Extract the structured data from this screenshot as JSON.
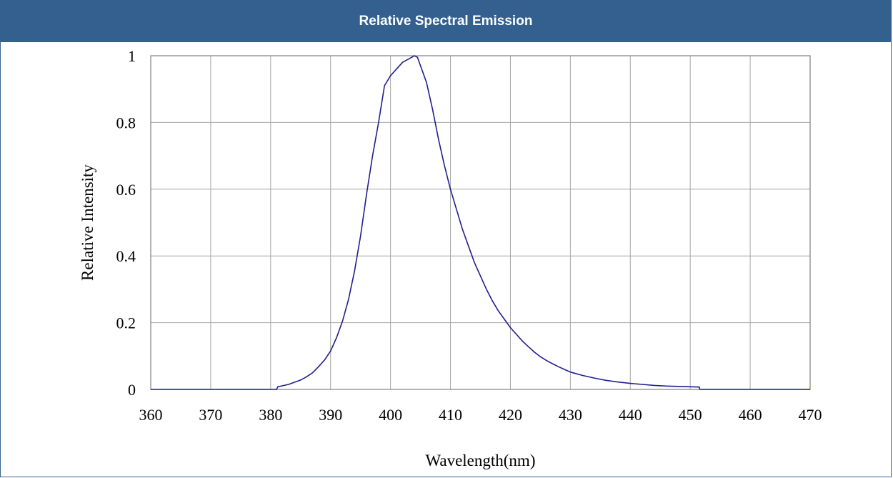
{
  "header": {
    "title": "Relative Spectral Emission"
  },
  "chart_data": {
    "type": "line",
    "title": "Relative Spectral Emission",
    "xlabel": "Wavelength(nm)",
    "ylabel": "Relative Intensity",
    "xlim": [
      360,
      470
    ],
    "ylim": [
      0,
      1
    ],
    "xticks": [
      "360",
      "370",
      "380",
      "390",
      "400",
      "410",
      "420",
      "430",
      "440",
      "450",
      "460",
      "470"
    ],
    "yticks": [
      "0",
      "0.2",
      "0.4",
      "0.6",
      "0.8",
      "1"
    ],
    "grid": true,
    "line_color": "#1f1f8f",
    "series": [
      {
        "x": [
          360,
          381,
          381.2,
          383,
          385,
          386,
          387,
          388,
          389,
          390,
          391,
          392,
          393,
          394,
          395,
          396,
          397,
          398,
          399,
          400,
          401,
          402,
          403,
          404,
          404.5,
          405,
          406,
          407,
          408,
          409,
          410,
          411,
          412,
          413,
          414,
          415,
          416,
          417,
          418,
          419,
          420,
          421,
          422,
          423,
          424,
          425,
          426,
          427,
          428,
          429,
          430,
          432,
          434,
          436,
          438,
          440,
          442,
          444,
          446,
          448,
          450,
          451.5,
          451.6,
          470
        ],
        "y": [
          0,
          0,
          0.008,
          0.015,
          0.028,
          0.038,
          0.05,
          0.068,
          0.088,
          0.115,
          0.155,
          0.205,
          0.27,
          0.355,
          0.46,
          0.585,
          0.7,
          0.8,
          0.91,
          0.94,
          0.96,
          0.98,
          0.99,
          1.0,
          0.995,
          0.97,
          0.92,
          0.84,
          0.75,
          0.67,
          0.6,
          0.54,
          0.48,
          0.43,
          0.38,
          0.34,
          0.3,
          0.265,
          0.235,
          0.21,
          0.185,
          0.165,
          0.145,
          0.128,
          0.112,
          0.098,
          0.087,
          0.077,
          0.068,
          0.06,
          0.052,
          0.042,
          0.034,
          0.027,
          0.022,
          0.018,
          0.015,
          0.012,
          0.01,
          0.009,
          0.008,
          0.007,
          0,
          0
        ]
      }
    ]
  }
}
